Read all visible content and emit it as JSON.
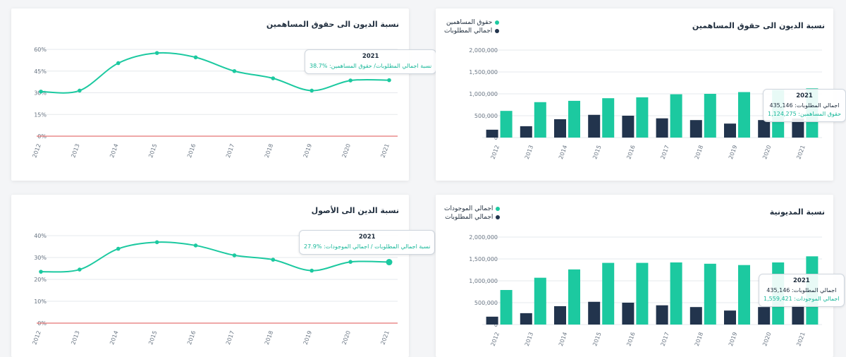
{
  "colors": {
    "teal": "#1cc9a0",
    "navy": "#22344d",
    "red": "#e57373",
    "grid": "#e5e8ec"
  },
  "cards": {
    "tl": {
      "title": "نسبة الديون الى حقوق المساهمين"
    },
    "tr": {
      "title": "نسبة الديون الى حقوق المساهمين",
      "legend": [
        "حقوق المساهمين",
        "اجمالي المطلوبات"
      ]
    },
    "bl": {
      "title": "نسبة الدين الى الأصول"
    },
    "br": {
      "title": "نسبة المديونية",
      "legend": [
        "اجمالي الموجودات",
        "اجمالي المطلوبات"
      ]
    }
  },
  "tooltips": {
    "tl": {
      "year": "2021",
      "line1": "نسبة اجمالي المطلوبات/ حقوق المساهمين: %38.7"
    },
    "tr": {
      "year": "2021",
      "line1": "اجمالي المطلوبات: 435,146",
      "line2": "حقوق المساهمين: 1,124,275"
    },
    "bl": {
      "year": "2021",
      "line1": "نسبة اجمالي المطلوبات / اجمالي الموجودات: %27.9"
    },
    "br": {
      "year": "2021",
      "line1": "اجمالي المطلوبات: 435,146",
      "line2": "اجمالي الموجودات: 1,559,421"
    }
  },
  "chart_data": [
    {
      "id": "tl",
      "type": "line",
      "title": "نسبة الديون الى حقوق المساهمين",
      "x": [
        "2012",
        "2013",
        "2014",
        "2015",
        "2016",
        "2017",
        "2018",
        "2019",
        "2020",
        "2021"
      ],
      "series": [
        {
          "values": [
            30.8,
            31.5,
            50.5,
            57.5,
            54.5,
            45,
            40,
            31.5,
            38.5,
            38.7
          ]
        }
      ],
      "yticks": [
        "0%",
        "15%",
        "30%",
        "45%",
        "60%"
      ],
      "ylim": [
        0,
        60
      ],
      "grid": true,
      "reference_line": 0
    },
    {
      "id": "tr",
      "type": "bar",
      "title": "نسبة الديون الى حقوق المساهمين",
      "categories": [
        "2012",
        "2013",
        "2014",
        "2015",
        "2016",
        "2017",
        "2018",
        "2019",
        "2020",
        "2021"
      ],
      "series": [
        {
          "name": "اجمالي المطلوبات",
          "values": [
            180000,
            260000,
            420000,
            520000,
            500000,
            440000,
            400000,
            320000,
            400000,
            435146
          ]
        },
        {
          "name": "حقوق المساهمين",
          "values": [
            610000,
            810000,
            840000,
            900000,
            920000,
            990000,
            1000000,
            1040000,
            1090000,
            1124275
          ]
        }
      ],
      "yticks": [
        "0",
        "500,000",
        "1,000,000",
        "1,500,000",
        "2,000,000"
      ],
      "ylim": [
        0,
        2000000
      ],
      "grid": true,
      "legend": "top-left"
    },
    {
      "id": "bl",
      "type": "line",
      "title": "نسبة الدين الى الأصول",
      "x": [
        "2012",
        "2013",
        "2014",
        "2015",
        "2016",
        "2017",
        "2018",
        "2019",
        "2020",
        "2021"
      ],
      "series": [
        {
          "values": [
            23.5,
            24.5,
            34,
            37,
            35.5,
            31,
            29,
            24,
            28,
            27.9
          ]
        }
      ],
      "yticks": [
        "0%",
        "10%",
        "20%",
        "30%",
        "40%"
      ],
      "ylim": [
        0,
        40
      ],
      "grid": true,
      "reference_line": 0
    },
    {
      "id": "br",
      "type": "bar",
      "title": "نسبة المديونية",
      "categories": [
        "2012",
        "2013",
        "2014",
        "2015",
        "2016",
        "2017",
        "2018",
        "2019",
        "2020",
        "2021"
      ],
      "series": [
        {
          "name": "اجمالي المطلوبات",
          "values": [
            180000,
            260000,
            420000,
            520000,
            500000,
            440000,
            400000,
            320000,
            400000,
            435146
          ]
        },
        {
          "name": "اجمالي الموجودات",
          "values": [
            790000,
            1070000,
            1260000,
            1410000,
            1410000,
            1420000,
            1390000,
            1360000,
            1420000,
            1559421
          ]
        }
      ],
      "yticks": [
        "0",
        "500,000",
        "1,000,000",
        "1,500,000",
        "2,000,000"
      ],
      "ylim": [
        0,
        2000000
      ],
      "grid": true,
      "legend": "top-left"
    }
  ]
}
